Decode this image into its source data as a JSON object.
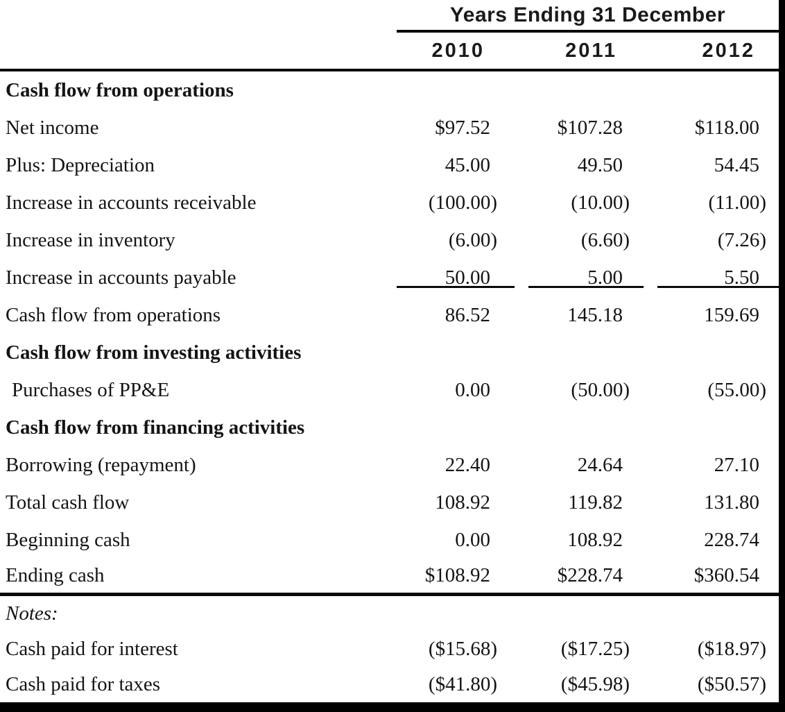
{
  "page": {
    "background": "#ffffff",
    "frame_color": "#000000",
    "text_color": "#141414"
  },
  "table": {
    "column_group_header": "Years Ending 31 December",
    "columns": [
      "2010",
      "2011",
      "2012"
    ],
    "rows": [
      {
        "label": "Cash flow from operations",
        "style": "section",
        "values": [
          "",
          "",
          ""
        ]
      },
      {
        "label": "Net income",
        "values": [
          "$97.52",
          "$107.28",
          "$118.00"
        ]
      },
      {
        "label": "Plus: Depreciation",
        "values": [
          "45.00",
          "49.50",
          "54.45"
        ]
      },
      {
        "label": "Increase in accounts receivable",
        "values": [
          "(100.00)",
          "(10.00)",
          "(11.00)"
        ]
      },
      {
        "label": "Increase in inventory",
        "values": [
          "(6.00)",
          "(6.60)",
          "(7.26)"
        ]
      },
      {
        "label": "Increase in accounts payable",
        "values": [
          "50.00",
          "5.00",
          "5.50"
        ],
        "sum_underline": true
      },
      {
        "label": "Cash flow from operations",
        "values": [
          "86.52",
          "145.18",
          "159.69"
        ]
      },
      {
        "label": "Cash flow from investing activities",
        "style": "section",
        "values": [
          "",
          "",
          ""
        ]
      },
      {
        "label": "Purchases of PP&E",
        "style": "indent",
        "values": [
          "0.00",
          "(50.00)",
          "(55.00)"
        ]
      },
      {
        "label": "Cash flow from financing activities",
        "style": "section",
        "values": [
          "",
          "",
          ""
        ]
      },
      {
        "label": "Borrowing (repayment)",
        "values": [
          "22.40",
          "24.64",
          "27.10"
        ]
      },
      {
        "label": "Total cash flow",
        "values": [
          "108.92",
          "119.82",
          "131.80"
        ]
      },
      {
        "label": "Beginning cash",
        "values": [
          "0.00",
          "108.92",
          "228.74"
        ]
      },
      {
        "label": "Ending cash",
        "values": [
          "$108.92",
          "$228.74",
          "$360.54"
        ],
        "rule_below": true
      }
    ],
    "notes": {
      "title": "Notes:",
      "rows": [
        {
          "label": "Cash paid for interest",
          "values": [
            "($15.68)",
            "($17.25)",
            "($18.97)"
          ]
        },
        {
          "label": "Cash paid for taxes",
          "values": [
            "($41.80)",
            "($45.98)",
            "($50.57)"
          ]
        }
      ]
    }
  }
}
